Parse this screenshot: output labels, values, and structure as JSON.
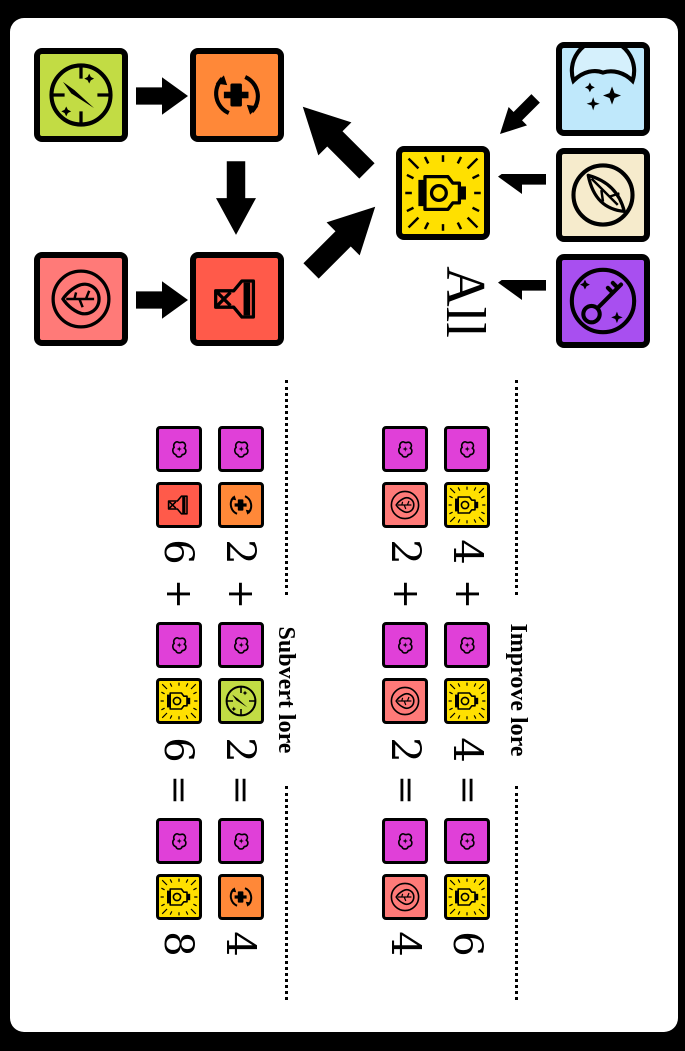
{
  "colors": {
    "magenta": "#e040d8",
    "yellow": "#ffe000",
    "orange": "#ff8838",
    "red": "#ff5a4a",
    "pink": "#ff7a78",
    "lime": "#c2dc44",
    "sky": "#bfe8fb",
    "cream": "#f6ebcc",
    "purple": "#a84ff0"
  },
  "icons": {
    "lime": "compass-icon",
    "orange": "cycle-icon",
    "red": "potion-icon",
    "pink": "heart-icon",
    "yellow": "lantern-icon",
    "sky": "moon-icon",
    "cream": "moth-icon",
    "purple": "key-icon",
    "magenta": "lore-icon"
  },
  "diagram": {
    "all_label": "All"
  },
  "improve": {
    "title": "Improve lore",
    "row1": {
      "a": "4",
      "op1": "+",
      "b": "4",
      "op2": "=",
      "c": "6"
    },
    "row2": {
      "a": "2",
      "op1": "+",
      "b": "2",
      "op2": "=",
      "c": "4"
    }
  },
  "subvert": {
    "title": "Subvert lore",
    "row1": {
      "a": "2",
      "op1": "+",
      "b": "2",
      "op2": "=",
      "c": "4"
    },
    "row2": {
      "a": "6",
      "op1": "+",
      "b": "6",
      "op2": "=",
      "c": "8"
    }
  }
}
